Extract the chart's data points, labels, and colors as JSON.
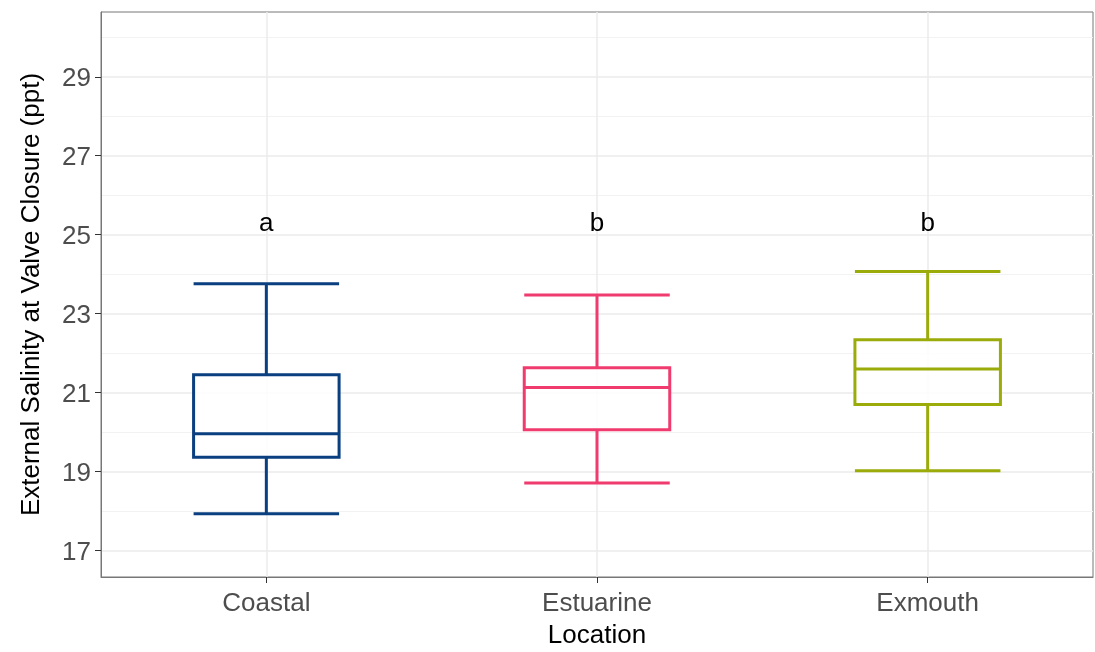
{
  "chart_data": {
    "type": "box",
    "xlabel": "Location",
    "ylabel": "External Salinity at Valve Closure (ppt)",
    "categories": [
      "Coastal",
      "Estuarine",
      "Exmouth"
    ],
    "colors": [
      "#0a3f80",
      "#f03b6e",
      "#9aab0a"
    ],
    "boxes": [
      {
        "low": 17.93,
        "q1": 19.36,
        "median": 19.96,
        "q3": 21.45,
        "high": 23.76
      },
      {
        "low": 18.71,
        "q1": 20.06,
        "median": 21.13,
        "q3": 21.63,
        "high": 23.47
      },
      {
        "low": 19.02,
        "q1": 20.7,
        "median": 21.6,
        "q3": 22.34,
        "high": 24.07
      }
    ],
    "ylim": [
      16.33,
      30.64
    ],
    "yticks": [
      17,
      19,
      21,
      23,
      25,
      27,
      29
    ],
    "grid": true,
    "annotations": [
      "a",
      "b",
      "b"
    ]
  }
}
